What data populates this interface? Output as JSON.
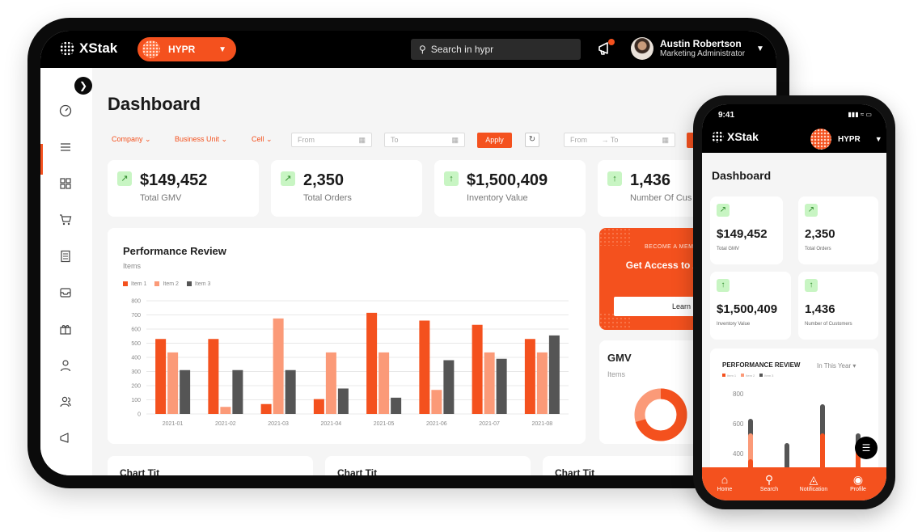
{
  "colors": {
    "accent": "#f4511e",
    "light_orange": "#fb9a78",
    "dark_gray": "#555555",
    "positive_bg": "#c8f5c3"
  },
  "header": {
    "logo": "XStak",
    "brand": "HYPR",
    "search_placeholder": "Search in hypr",
    "user_name": "Austin Robertson",
    "user_role": "Marketing Administrator"
  },
  "page": {
    "title": "Dashboard"
  },
  "filters": {
    "company": "Company",
    "business_unit": "Business Unit",
    "cell": "Cell",
    "from": "From",
    "to": "To",
    "apply": "Apply",
    "range_from": "From",
    "range_to": "To"
  },
  "kpis": [
    {
      "value": "$149,452",
      "label": "Total GMV"
    },
    {
      "value": "2,350",
      "label": "Total Orders"
    },
    {
      "value": "$1,500,409",
      "label": "Inventory Value"
    },
    {
      "value": "1,436",
      "label": "Number Of Cus"
    }
  ],
  "performance": {
    "title": "Performance Review",
    "subtitle": "Items"
  },
  "chart_data": {
    "type": "bar",
    "categories": [
      "2021-01",
      "2021-02",
      "2021-03",
      "2021-04",
      "2021-05",
      "2021-06",
      "2021-07",
      "2021-08"
    ],
    "series": [
      {
        "name": "Item 1",
        "values": [
          530,
          530,
          70,
          105,
          715,
          660,
          630,
          530
        ]
      },
      {
        "name": "Item 2",
        "values": [
          435,
          50,
          675,
          435,
          435,
          170,
          435,
          435
        ]
      },
      {
        "name": "Item 3",
        "values": [
          310,
          310,
          310,
          180,
          115,
          380,
          390,
          555
        ]
      }
    ],
    "yticks": [
      "0",
      "100",
      "200",
      "300",
      "400",
      "500",
      "600",
      "700",
      "800"
    ],
    "ylim": [
      0,
      800
    ],
    "grid": true,
    "legend": "top-left"
  },
  "promo": {
    "kicker": "BECOME A MEM",
    "headline": "Get Access to All Features for",
    "button": "Learn More"
  },
  "gmv": {
    "title": "GMV",
    "subtitle": "Items"
  },
  "mini_charts": [
    "Chart Tit",
    "Chart Tit",
    "Chart Tit"
  ],
  "phone": {
    "time": "9:41",
    "logo": "XStak",
    "brand": "HYPR",
    "title": "Dashboard",
    "kpis": [
      {
        "value": "$149,452",
        "label": "Total GMV"
      },
      {
        "value": "2,350",
        "label": "Total Orders"
      },
      {
        "value": "$1,500,409",
        "label": "Inventory Value"
      },
      {
        "value": "1,436",
        "label": "Number of Customers"
      }
    ],
    "perf_title": "PERFORMANCE REVIEW",
    "perf_period": "In This Year",
    "perf_legend": [
      "Item 1",
      "Item 2",
      "Item 3"
    ],
    "perf_yticks": [
      "800",
      "600",
      "400"
    ],
    "tabs": [
      "Home",
      "Search",
      "Notification",
      "Profile"
    ]
  }
}
